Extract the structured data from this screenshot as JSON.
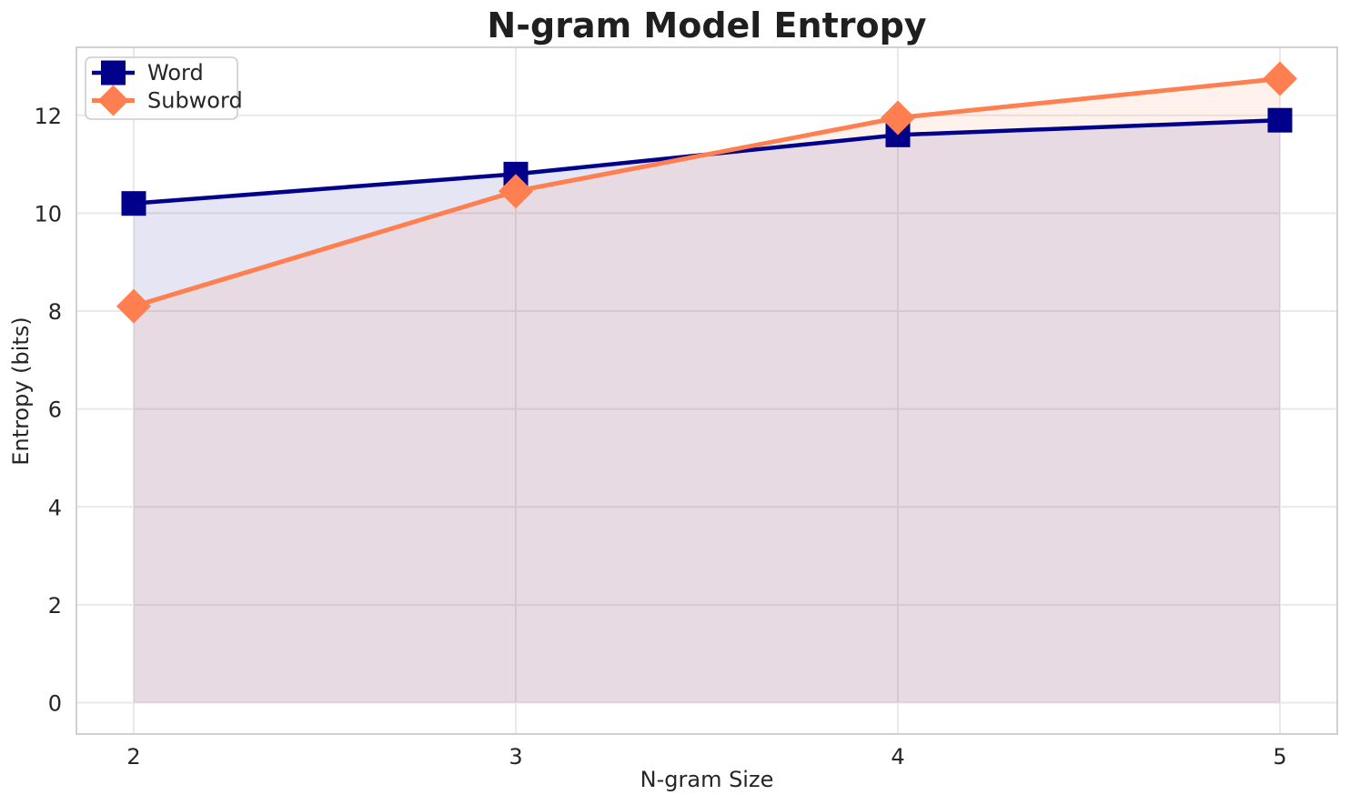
{
  "chart_data": {
    "type": "line",
    "title": "N-gram Model Entropy",
    "xlabel": "N-gram Size",
    "ylabel": "Entropy (bits)",
    "x": [
      2,
      3,
      4,
      5
    ],
    "series": [
      {
        "name": "Word",
        "values": [
          10.2,
          10.8,
          11.6,
          11.9
        ],
        "color": "#00008b",
        "marker": "square",
        "line_width": 4.5,
        "area_fill_to_zero": true,
        "fill_opacity": 0.1
      },
      {
        "name": "Subword",
        "values": [
          8.1,
          10.45,
          11.95,
          12.75
        ],
        "color": "#ff7f50",
        "marker": "diamond",
        "line_width": 5,
        "area_fill_to_zero": true,
        "fill_opacity": 0.1
      }
    ],
    "xlim": [
      1.85,
      5.15
    ],
    "ylim": [
      -0.64,
      13.39
    ],
    "xticks": [
      "2",
      "3",
      "4",
      "5"
    ],
    "xtick_values": [
      2,
      3,
      4,
      5
    ],
    "yticks": [
      "0",
      "2",
      "4",
      "6",
      "8",
      "10",
      "12"
    ],
    "ytick_values": [
      0,
      2,
      4,
      6,
      8,
      10,
      12
    ],
    "grid": true,
    "legend_position": "upper left"
  },
  "legend": {
    "items": [
      {
        "label": "Word",
        "marker": "square-marker"
      },
      {
        "label": "Subword",
        "marker": "diamond-marker"
      }
    ]
  },
  "colors": {
    "background": "#ffffff",
    "grid": "#e9e9e9",
    "spine": "#cccccc",
    "text": "#262626",
    "title_text": "#1f1f1f",
    "legend_border": "#cccccc",
    "word_series": "#00008b",
    "subword_series": "#ff7f50"
  }
}
